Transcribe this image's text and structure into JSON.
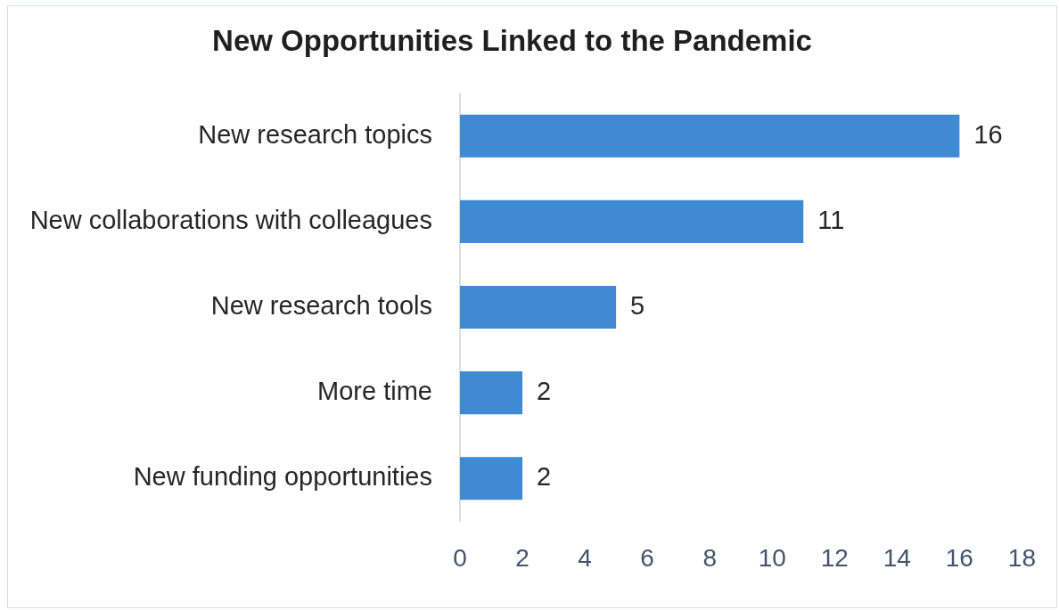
{
  "chart_data": {
    "type": "bar",
    "orientation": "horizontal",
    "title": "New Opportunities Linked to the Pandemic",
    "categories": [
      "New research topics",
      "New collaborations with colleagues",
      "New research tools",
      "More time",
      "New funding opportunities"
    ],
    "values": [
      16,
      11,
      5,
      2,
      2
    ],
    "color": "#3f8ad3",
    "xlim": [
      0,
      18
    ],
    "xticks": [
      0,
      2,
      4,
      6,
      8,
      10,
      12,
      14,
      16,
      18
    ],
    "data_labels": true,
    "grid": false,
    "legend": false
  }
}
